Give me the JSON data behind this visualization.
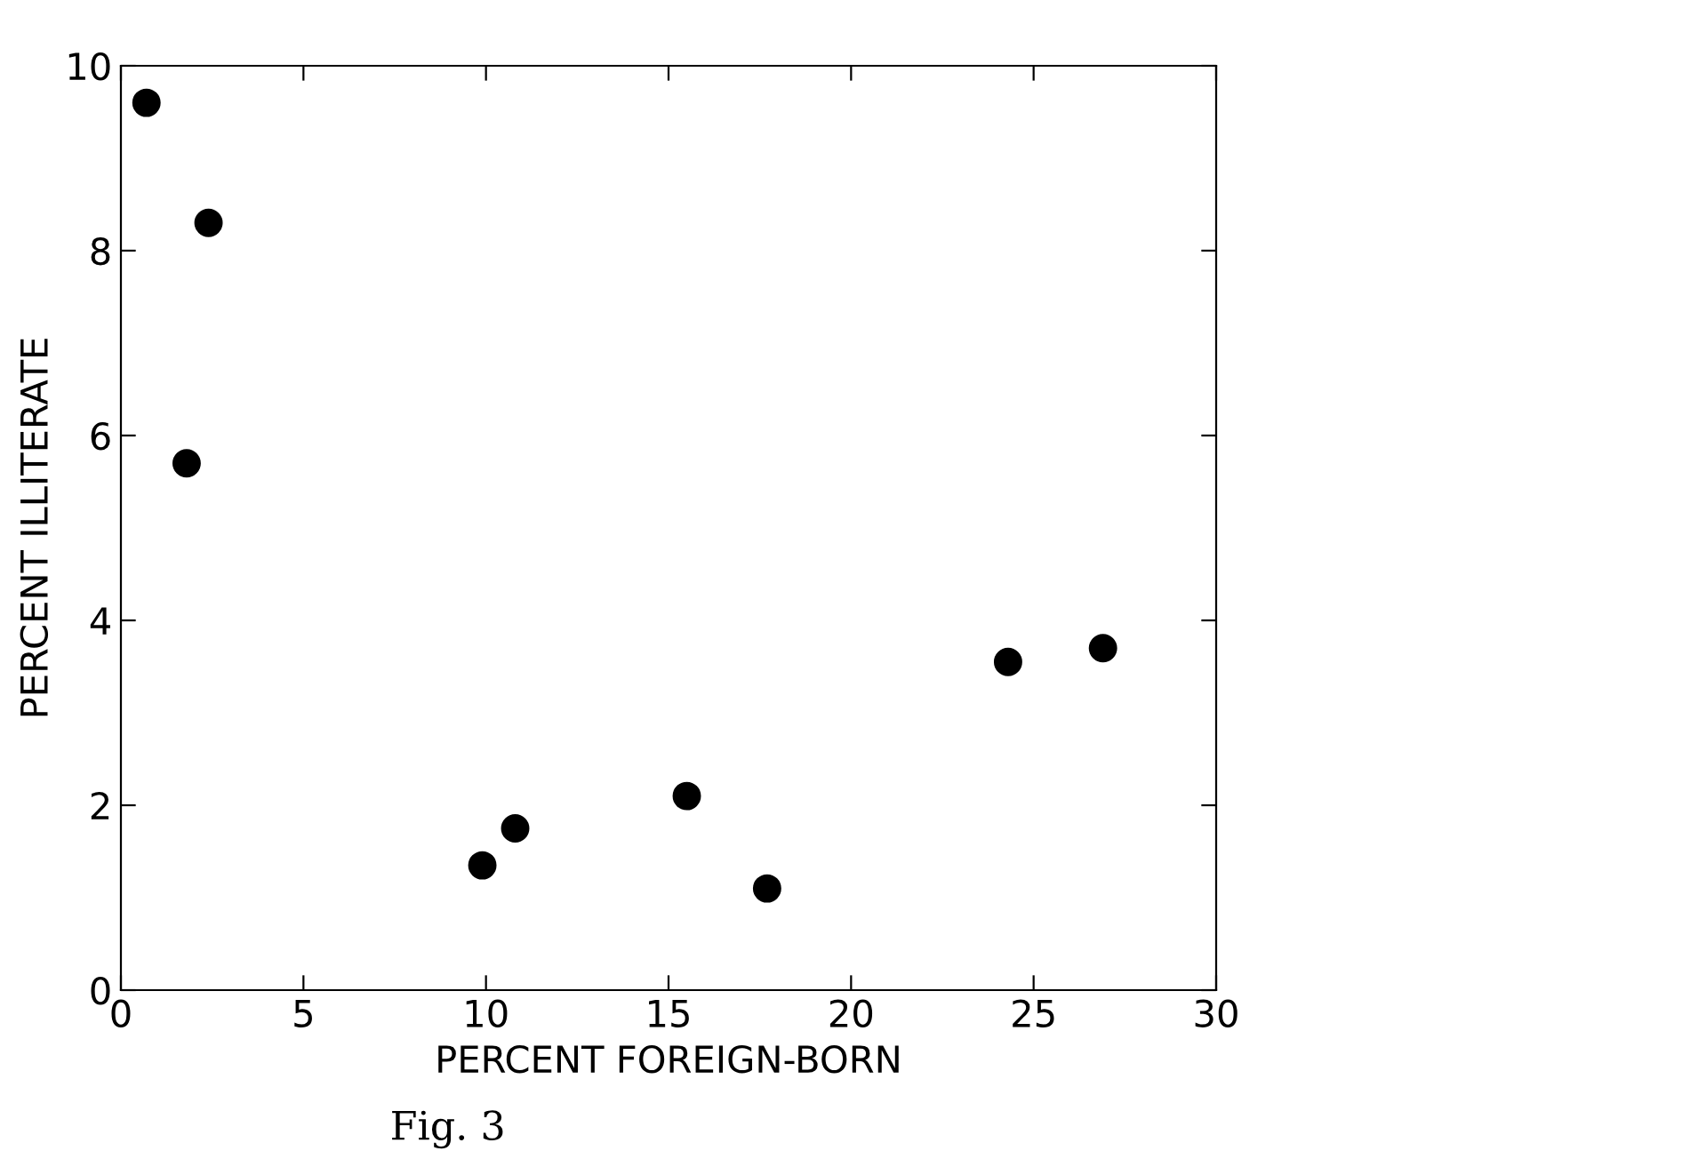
{
  "chart_data": {
    "type": "scatter",
    "xlabel": "PERCENT FOREIGN-BORN",
    "ylabel": "PERCENT ILLITERATE",
    "x": [
      0.7,
      2.4,
      1.8,
      9.9,
      10.8,
      15.5,
      17.7,
      24.3,
      26.9
    ],
    "values": [
      9.6,
      8.3,
      5.7,
      1.35,
      1.75,
      2.1,
      1.1,
      3.55,
      3.7
    ],
    "color": "#000000",
    "marker": "circle",
    "xlim": [
      0,
      30
    ],
    "ylim": [
      0,
      10
    ],
    "xticks": [
      0,
      5,
      10,
      15,
      20,
      25,
      30
    ],
    "yticks": [
      0,
      2,
      4,
      6,
      8,
      10
    ],
    "grid": false,
    "annotations": [
      "Fig. 3"
    ]
  }
}
